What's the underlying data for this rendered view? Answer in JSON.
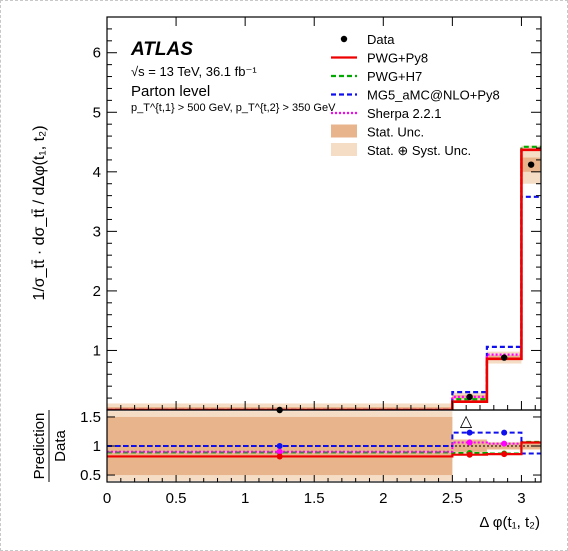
{
  "chart_data": {
    "type": "line",
    "experiment": "ATLAS",
    "energy_lumi": "√s = 13 TeV, 36.1 fb⁻¹",
    "level": "Parton level",
    "cuts": "p_T^{t,1} > 500 GeV, p_T^{t,2} > 350 GeV",
    "ylabel": "1/σ_tt̄ · dσ_tt̄ / dΔφ(t₁, t₂)",
    "xlabel": "Δ φ(t₁, t₂)",
    "ratio_ylabel_top": "Prediction",
    "ratio_ylabel_bottom": "Data",
    "xlim": [
      0,
      3.1416
    ],
    "ylim": [
      0,
      6.6
    ],
    "ratio_ylim": [
      0.38,
      1.62
    ],
    "xticks": [
      "0",
      "0.5",
      "1",
      "1.5",
      "2",
      "2.5",
      "3"
    ],
    "yticks": [
      "1",
      "2",
      "3",
      "4",
      "5",
      "6"
    ],
    "ratio_yticks": [
      "0.5",
      "1",
      "1.5"
    ],
    "bin_edges": [
      0,
      2.5,
      2.75,
      3.0,
      3.1416
    ],
    "data": {
      "name": "Data",
      "x": [
        1.25,
        2.625,
        2.875,
        3.07
      ],
      "y": [
        0.0,
        0.22,
        0.88,
        4.12
      ],
      "stat_unc": [
        0.05,
        0.03,
        0.04,
        0.12
      ],
      "syst_unc": [
        0.06,
        0.04,
        0.06,
        0.2
      ]
    },
    "ratio_band": {
      "stat": [
        0.5,
        0.1,
        0.05,
        0.05
      ],
      "total": [
        0.6,
        0.12,
        0.07,
        0.07
      ]
    },
    "series": [
      {
        "name": "PWG+Py8",
        "color": "#ee0000",
        "style": "solid",
        "values": [
          0.0,
          0.14,
          0.86,
          4.37
        ],
        "ratio": [
          0.82,
          0.85,
          0.86,
          1.06
        ]
      },
      {
        "name": "PWG+H7",
        "color": "#00aa00",
        "style": "dashed",
        "values": [
          0.0,
          0.18,
          0.86,
          4.42
        ],
        "ratio": [
          0.89,
          0.88,
          0.87,
          1.07
        ]
      },
      {
        "name": "MG5_aMC@NLO+Py8",
        "color": "#1010ee",
        "style": "dashed",
        "values": [
          0.0,
          0.3,
          1.06,
          3.58
        ],
        "ratio": [
          1.0,
          1.23,
          1.23,
          0.87
        ]
      },
      {
        "name": "Sherpa 2.2.1",
        "color": "#ff00ff",
        "style": "dotted",
        "values": [
          0.0,
          0.22,
          0.93,
          4.37
        ],
        "ratio": [
          0.9,
          1.06,
          1.04,
          1.06
        ]
      }
    ],
    "band_labels": {
      "stat": "Stat. Unc.",
      "total": "Stat. ⊕ Syst. Unc."
    },
    "colors": {
      "stat_band": "#e8b48c",
      "total_band": "#f5dcc4"
    },
    "marker_symbol": "△",
    "grid": false,
    "legend_position": "top-right"
  }
}
